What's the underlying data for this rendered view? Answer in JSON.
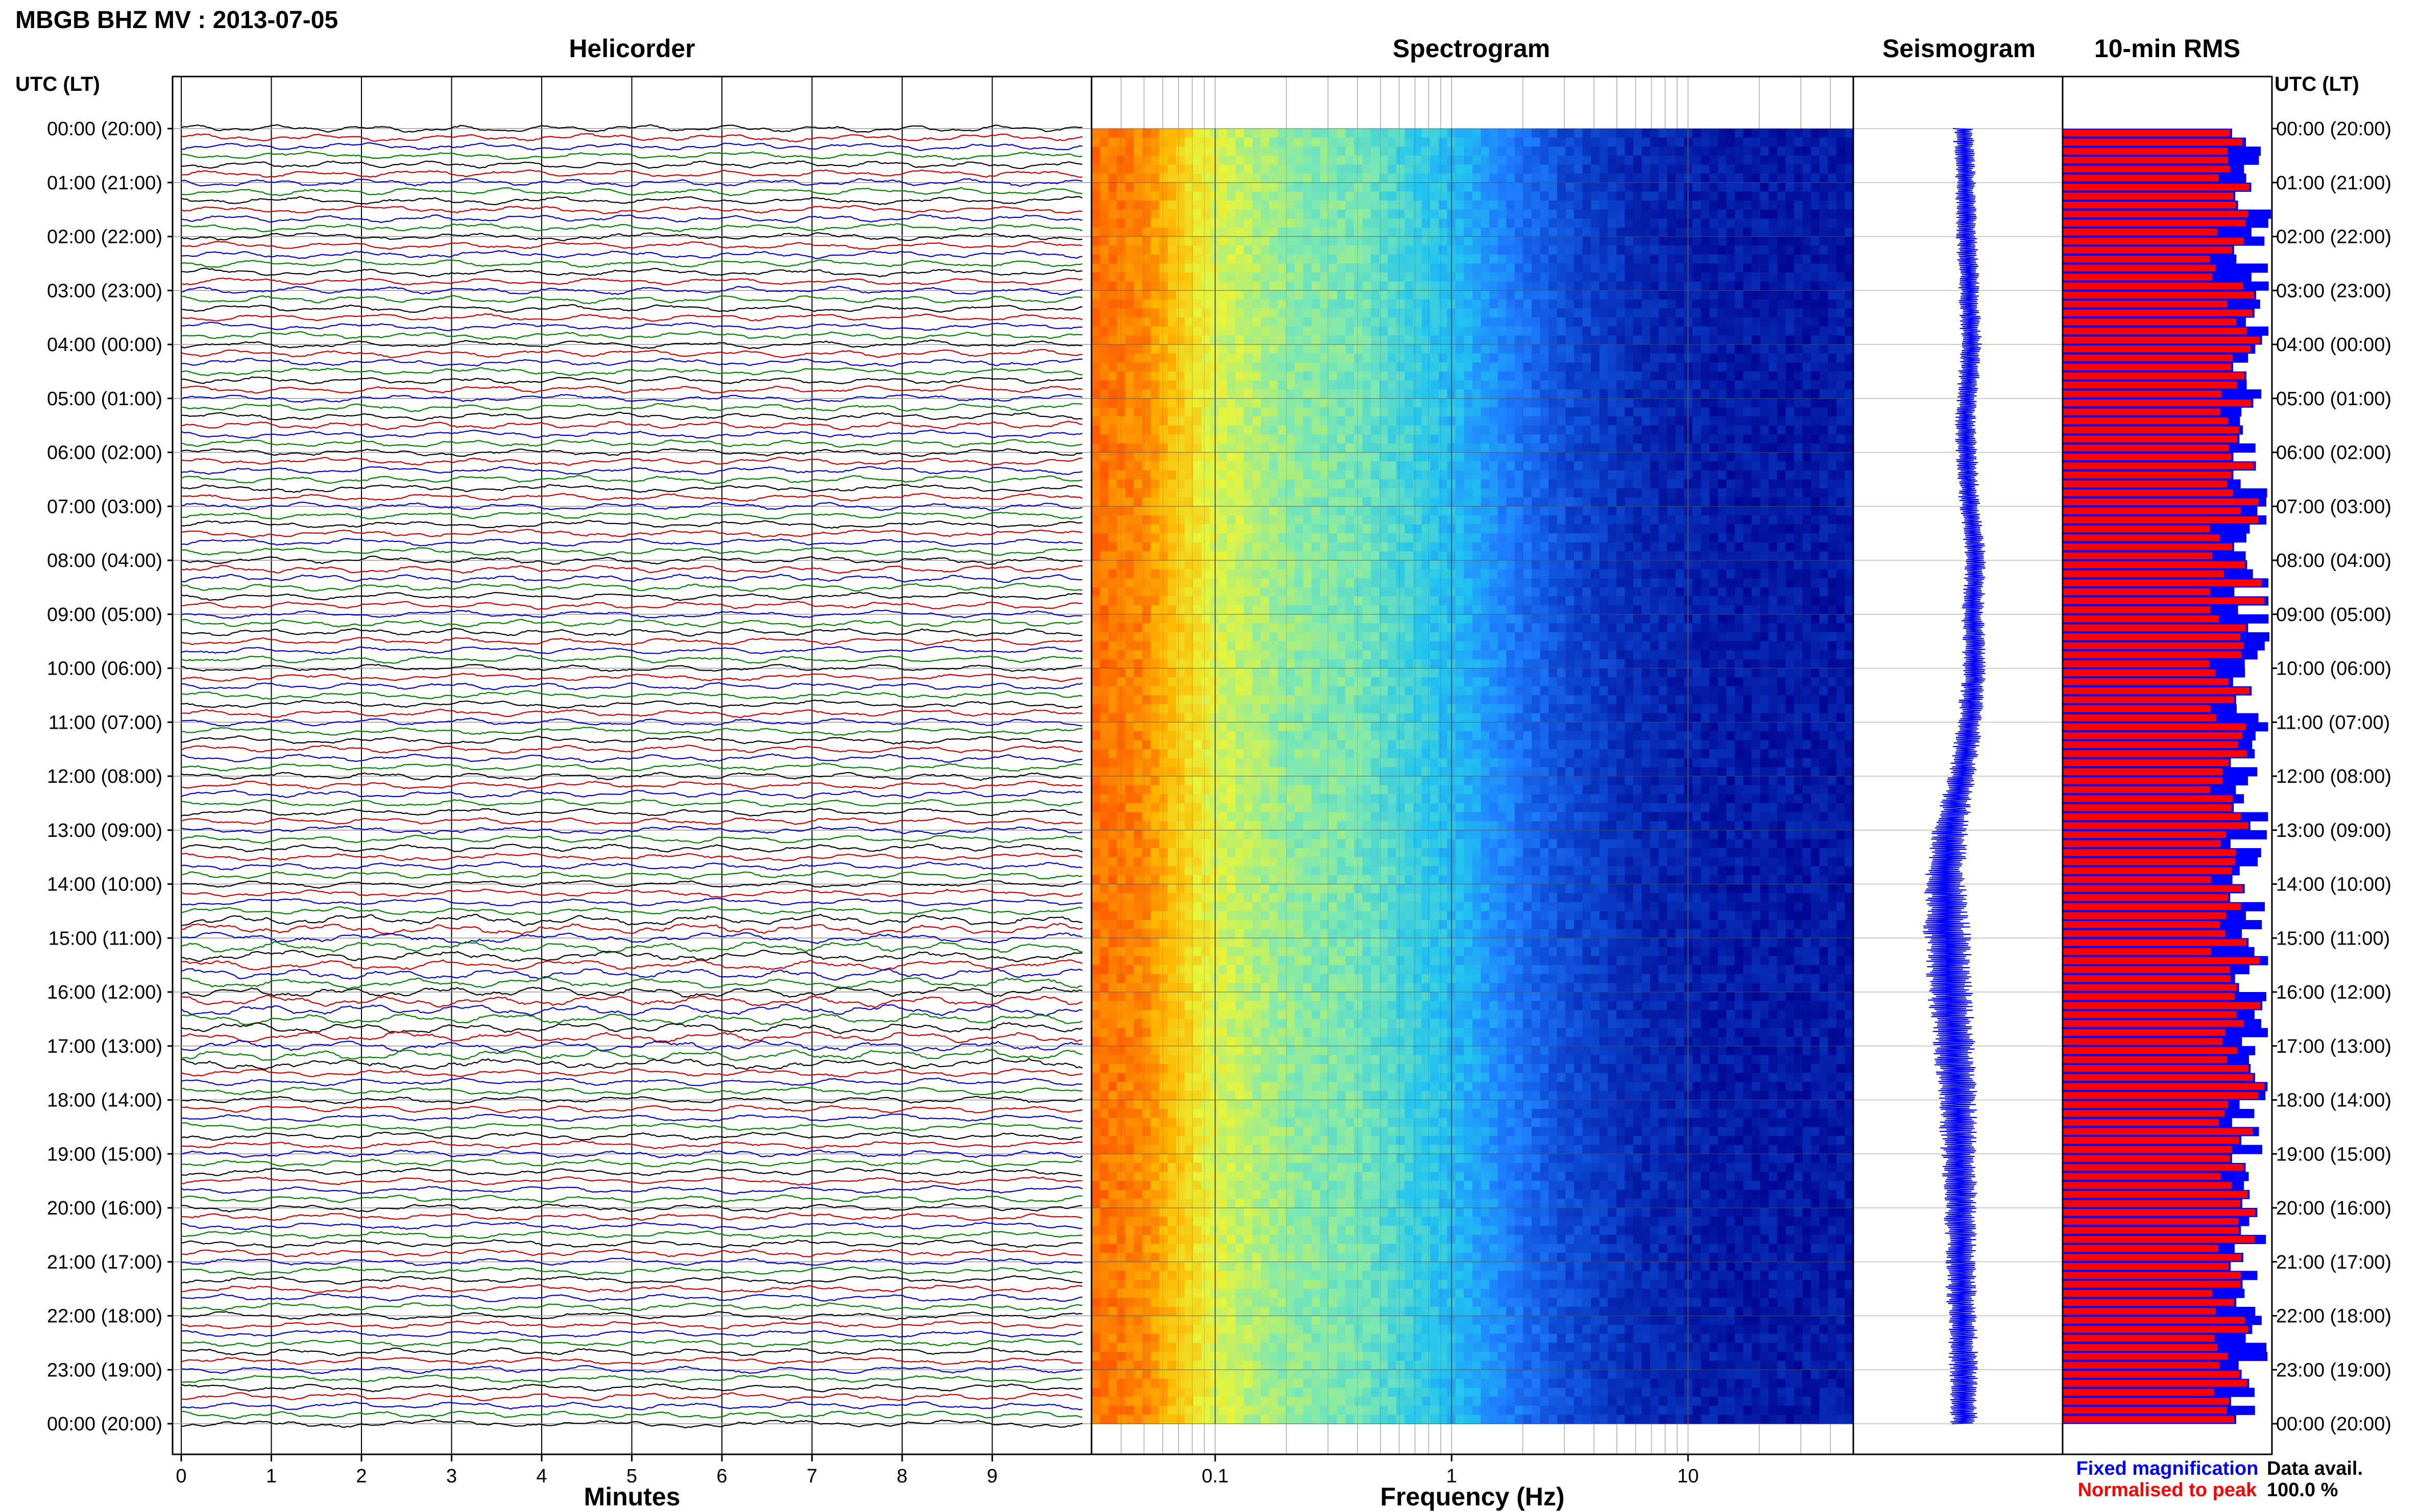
{
  "figure": {
    "title": "MBGB BHZ MV : 2013-07-05",
    "time_axis_label": "UTC (LT)"
  },
  "chart_data": [
    {
      "type": "line",
      "panel": "helicorder",
      "title": "Helicorder",
      "xlabel": "Minutes",
      "x_ticks": [
        0,
        1,
        2,
        3,
        4,
        5,
        6,
        7,
        8,
        9
      ],
      "xlim": [
        0,
        10
      ],
      "lines_per_hour": 6,
      "line_colors": [
        "#000000",
        "#cc0000",
        "#0000cc",
        "#008000"
      ],
      "y_tick_labels": [
        "00:00 (20:00)",
        "01:00 (21:00)",
        "02:00 (22:00)",
        "03:00 (23:00)",
        "04:00 (00:00)",
        "05:00 (01:00)",
        "06:00 (02:00)",
        "07:00 (03:00)",
        "08:00 (04:00)",
        "09:00 (05:00)",
        "10:00 (06:00)",
        "11:00 (07:00)",
        "12:00 (08:00)",
        "13:00 (09:00)",
        "14:00 (10:00)",
        "15:00 (11:00)",
        "16:00 (12:00)",
        "17:00 (13:00)",
        "18:00 (14:00)",
        "19:00 (15:00)",
        "20:00 (16:00)",
        "21:00 (17:00)",
        "22:00 (18:00)",
        "23:00 (19:00)",
        "00:00 (20:00)"
      ]
    },
    {
      "type": "heatmap",
      "panel": "spectrogram",
      "title": "Spectrogram",
      "xlabel": "Frequency (Hz)",
      "x_scale": "log",
      "xlim": [
        0.03,
        50
      ],
      "x_ticks": [
        0.1,
        1,
        10
      ],
      "x_tick_labels": [
        "0.1",
        "1",
        "10"
      ],
      "colormap": [
        "#00008b",
        "#0a3dc8",
        "#1e7dff",
        "#22c4f0",
        "#7ce8b2",
        "#e6f53c",
        "#ffb800",
        "#ff5a00"
      ],
      "color_by_frequency": [
        {
          "f": 0.03,
          "level": 0.97
        },
        {
          "f": 0.05,
          "level": 0.93
        },
        {
          "f": 0.1,
          "level": 0.7
        },
        {
          "f": 0.2,
          "level": 0.6
        },
        {
          "f": 0.4,
          "level": 0.56
        },
        {
          "f": 0.7,
          "level": 0.47
        },
        {
          "f": 1.2,
          "level": 0.38
        },
        {
          "f": 2,
          "level": 0.26
        },
        {
          "f": 3,
          "level": 0.18
        },
        {
          "f": 6,
          "level": 0.1
        },
        {
          "f": 15,
          "level": 0.06
        },
        {
          "f": 50,
          "level": 0.06
        }
      ]
    },
    {
      "type": "line",
      "panel": "seismogram",
      "title": "Seismogram",
      "color": "#0000ff",
      "x_position": [
        {
          "hour": 0,
          "offset": 0
        },
        {
          "hour": 2,
          "offset": 0.1
        },
        {
          "hour": 4,
          "offset": 0.25
        },
        {
          "hour": 5.5,
          "offset": 0.05
        },
        {
          "hour": 7,
          "offset": 0.2
        },
        {
          "hour": 8,
          "offset": 0.4
        },
        {
          "hour": 9,
          "offset": 0.3
        },
        {
          "hour": 10,
          "offset": 0.35
        },
        {
          "hour": 11,
          "offset": 0.2
        },
        {
          "hour": 12,
          "offset": -0.05
        },
        {
          "hour": 13,
          "offset": -0.45
        },
        {
          "hour": 14,
          "offset": -0.6
        },
        {
          "hour": 15,
          "offset": -0.55
        },
        {
          "hour": 16,
          "offset": -0.45
        },
        {
          "hour": 17,
          "offset": -0.3
        },
        {
          "hour": 18,
          "offset": -0.2
        },
        {
          "hour": 19,
          "offset": -0.15
        },
        {
          "hour": 20,
          "offset": -0.1
        },
        {
          "hour": 21,
          "offset": -0.1
        },
        {
          "hour": 22,
          "offset": -0.05
        },
        {
          "hour": 23,
          "offset": 0
        },
        {
          "hour": 24,
          "offset": 0
        }
      ],
      "amplitude_by_hour": [
        {
          "hour": 0,
          "amp": 0.35
        },
        {
          "hour": 8,
          "amp": 0.35
        },
        {
          "hour": 12,
          "amp": 0.45
        },
        {
          "hour": 13,
          "amp": 0.6
        },
        {
          "hour": 15,
          "amp": 0.8
        },
        {
          "hour": 17,
          "amp": 0.7
        },
        {
          "hour": 20,
          "amp": 0.55
        },
        {
          "hour": 24,
          "amp": 0.45
        }
      ]
    },
    {
      "type": "bar",
      "panel": "rms",
      "title": "10-min RMS",
      "orientation": "horizontal",
      "bars_per_hour": 6,
      "series": [
        {
          "name": "Fixed magnification",
          "color": "#0000ff"
        },
        {
          "name": "Normalised to peak",
          "color": "#ff0000"
        }
      ],
      "fixed_magnification_range": [
        0.8,
        1.0
      ],
      "normalised_range": [
        0.7,
        0.97
      ],
      "data_avail_label": "Data avail.",
      "data_avail_value": "100.0 %"
    }
  ]
}
